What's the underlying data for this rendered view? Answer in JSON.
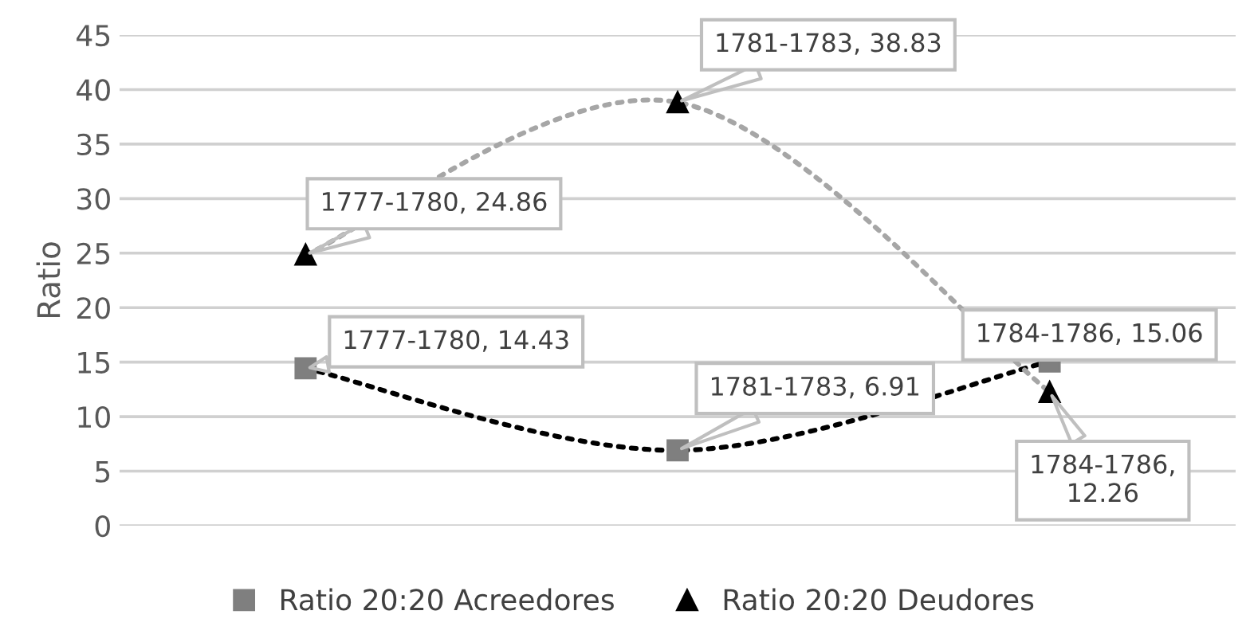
{
  "chart_data": {
    "type": "line",
    "ylabel": "Ratio",
    "categories": [
      null,
      null,
      null
    ],
    "series": [
      {
        "name": "Ratio 20:20 Acreedores",
        "color": "#000000",
        "colors": [
          "#7f7f7f",
          "#7f7f7f",
          "#7f7f7f"
        ],
        "marker": "square",
        "values": [
          14.43,
          6.91,
          15.06
        ],
        "value_labels": [
          "1777-1780, 14.43",
          "1781-1783, 6.91",
          "1784-1786, 15.06"
        ]
      },
      {
        "name": "Ratio 20:20 Deudores",
        "color": "#a6a6a6",
        "colors": [
          "#000000",
          "#000000",
          "#000000"
        ],
        "marker": "triangle",
        "values": [
          24.86,
          38.83,
          12.26
        ],
        "value_labels": [
          "1777-1780, 24.86",
          "1781-1783, 38.83",
          "1784-1786,\n12.26"
        ]
      }
    ],
    "ylim": [
      0,
      45
    ],
    "yticks": [
      0,
      5,
      10,
      15,
      20,
      25,
      30,
      35,
      40,
      45
    ],
    "grid": "y",
    "legend": "bottom",
    "line_style": "dotted",
    "tick_labels": "y"
  }
}
